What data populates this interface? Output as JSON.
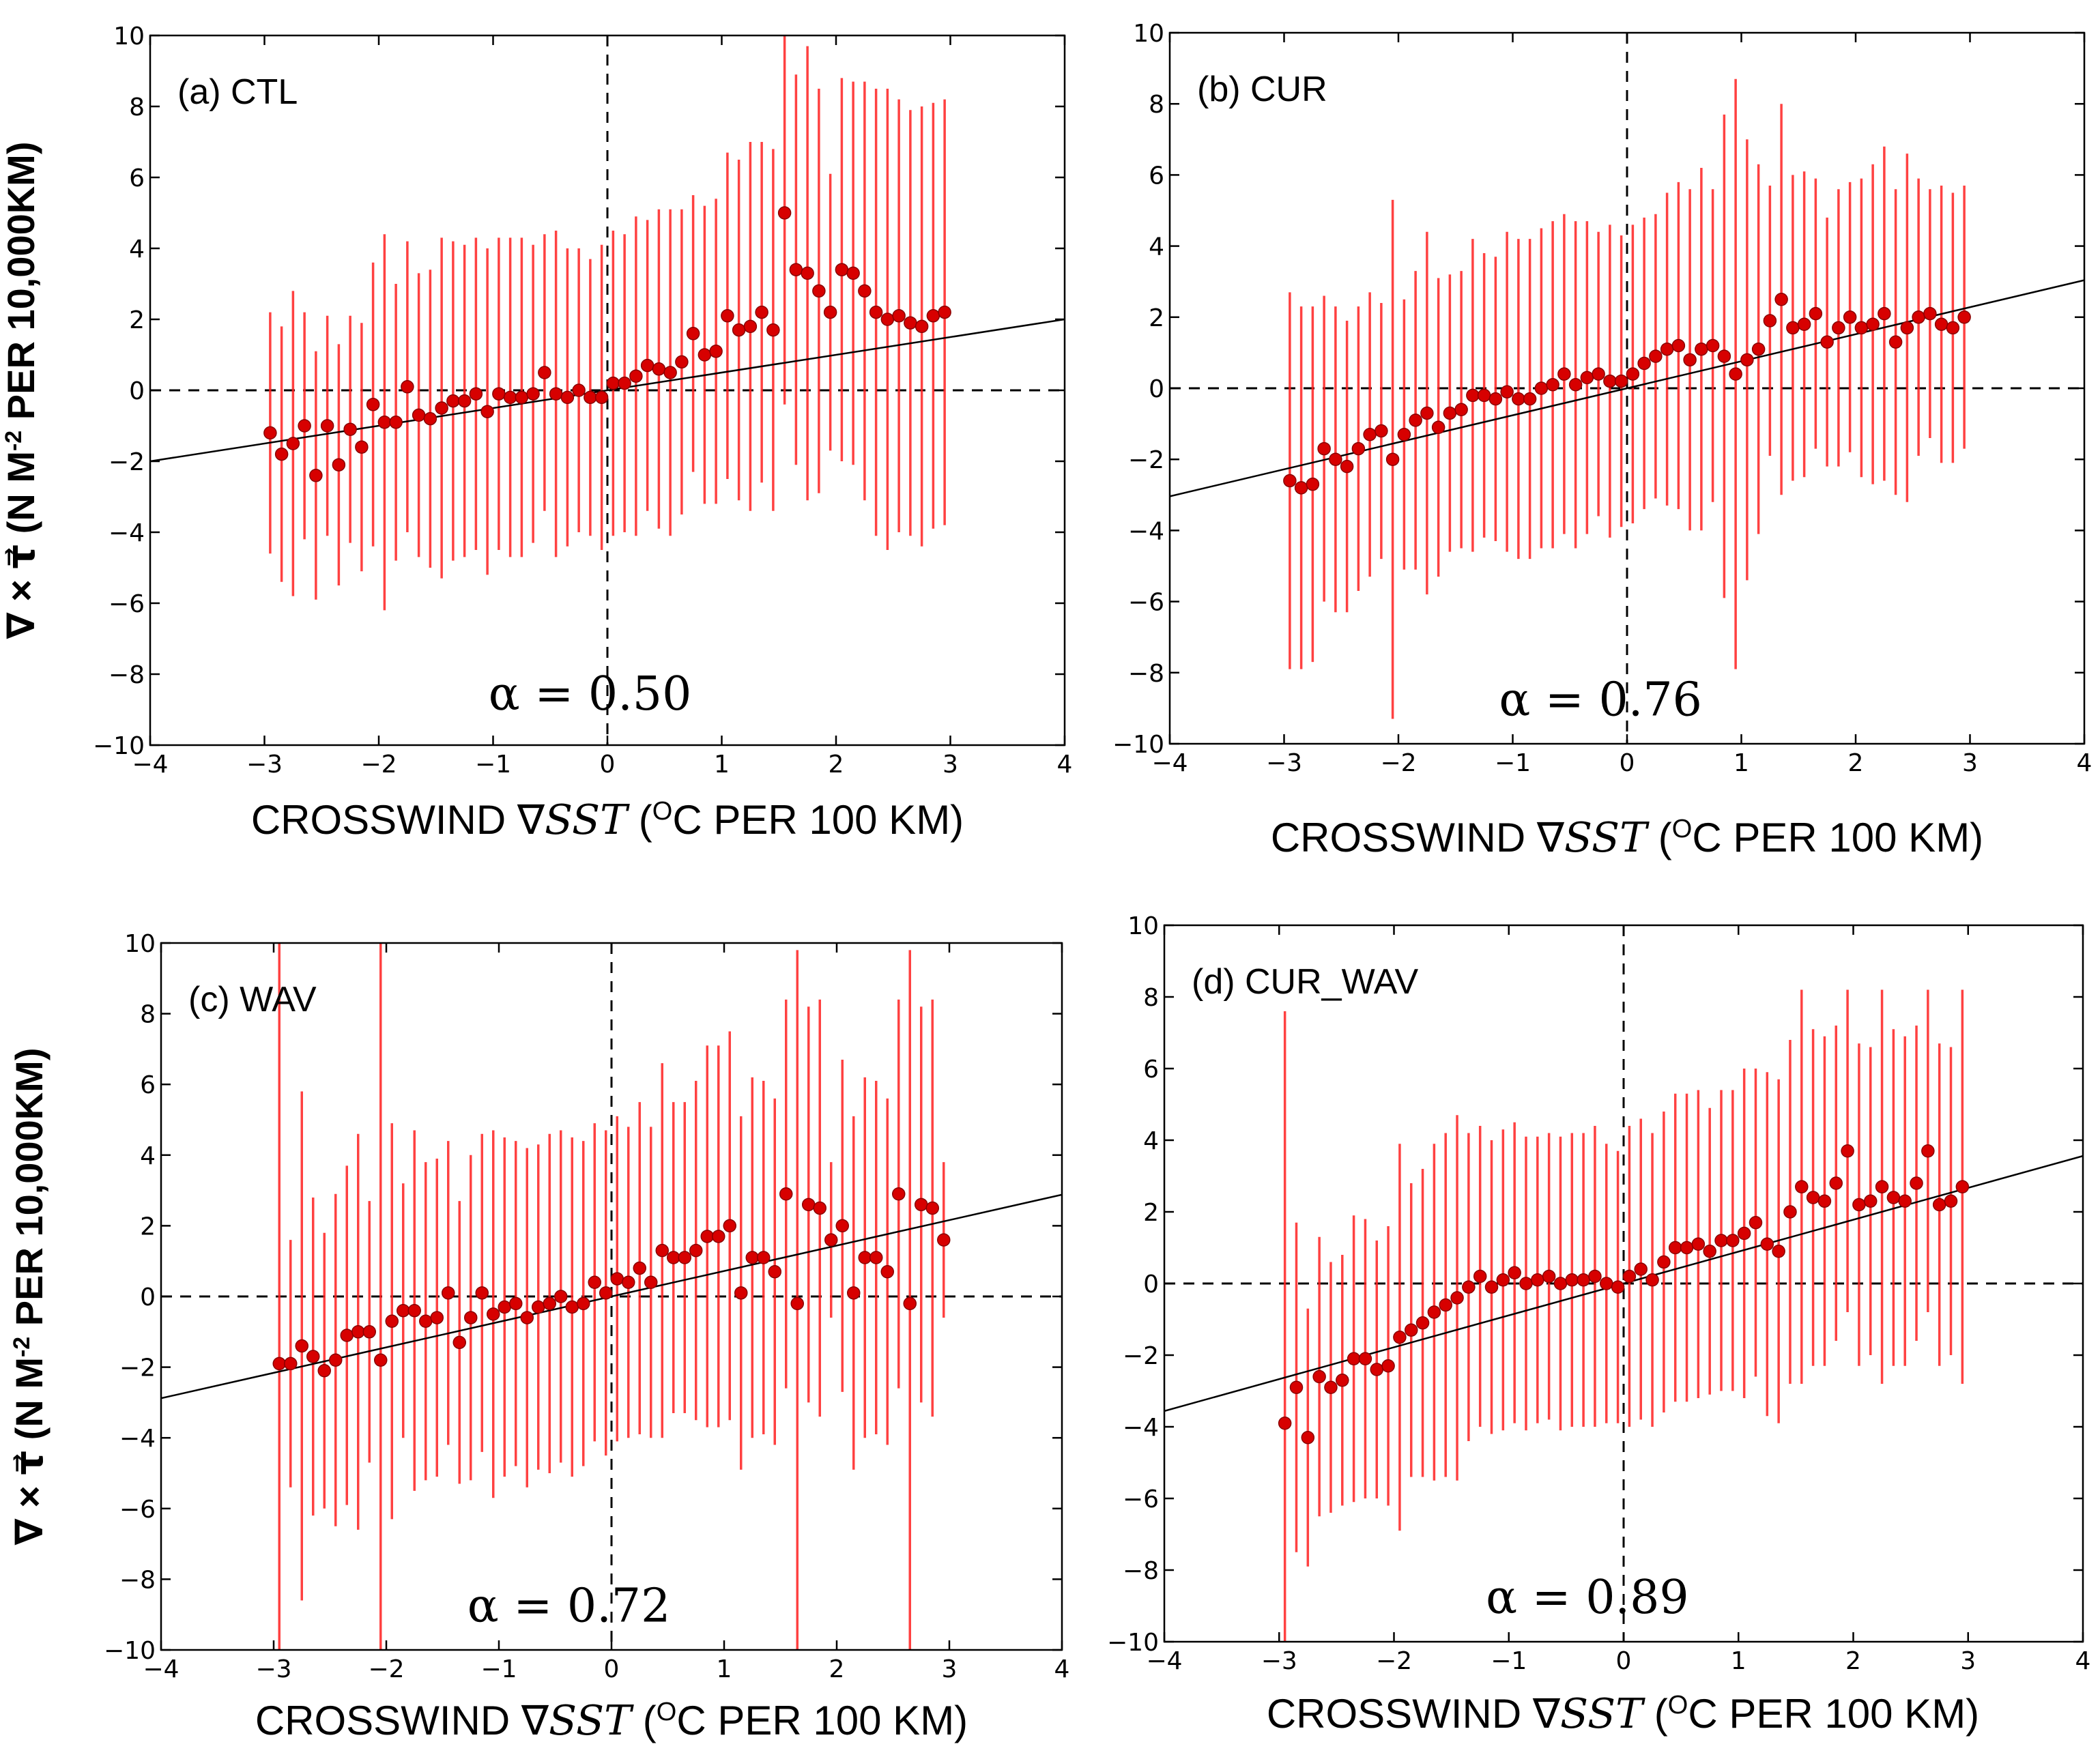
{
  "figure": {
    "xlabel": {
      "prefix": "CROSSWIND ∇",
      "sst": "SST",
      "unit_open": " (",
      "unit_sup": "O",
      "unit_rest": "C PER 100 KM)"
    },
    "ylabel": {
      "prefix": "∇ × τ⃗ (N M",
      "sup": "-2",
      "rest": " PER 10,000KM)"
    }
  },
  "chart_data": [
    {
      "type": "scatter",
      "title": "(a) CTL",
      "alpha_label": "α = 0.50",
      "xlim": [
        -4,
        4
      ],
      "ylim": [
        -10,
        10
      ],
      "xticks": [
        -4,
        -3,
        -2,
        -1,
        0,
        1,
        2,
        3,
        4
      ],
      "yticks": [
        -10,
        -8,
        -6,
        -4,
        -2,
        0,
        2,
        4,
        6,
        8,
        10
      ],
      "fit": {
        "slope": 0.5,
        "intercept": 0.0
      },
      "x": [
        -2.95,
        -2.85,
        -2.75,
        -2.65,
        -2.55,
        -2.45,
        -2.35,
        -2.25,
        -2.15,
        -2.05,
        -1.95,
        -1.85,
        -1.75,
        -1.65,
        -1.55,
        -1.45,
        -1.35,
        -1.25,
        -1.15,
        -1.05,
        -0.95,
        -0.85,
        -0.75,
        -0.65,
        -0.55,
        -0.45,
        -0.35,
        -0.25,
        -0.15,
        -0.05,
        0.05,
        0.15,
        0.25,
        0.35,
        0.45,
        0.55,
        0.65,
        0.75,
        0.85,
        0.95,
        1.05,
        1.15,
        1.25,
        1.35,
        1.45,
        1.55,
        1.65,
        1.75,
        1.85,
        1.95,
        2.05,
        2.15,
        2.25,
        2.35,
        2.45,
        2.55,
        2.65,
        2.75,
        2.85,
        2.95
      ],
      "y": [
        -1.2,
        -1.8,
        -1.5,
        -1.0,
        -2.4,
        -1.0,
        -2.1,
        -1.1,
        -1.6,
        -0.4,
        -0.9,
        -0.9,
        0.1,
        -0.7,
        -0.8,
        -0.5,
        -0.3,
        -0.3,
        -0.1,
        -0.6,
        -0.1,
        -0.2,
        -0.2,
        -0.1,
        0.5,
        -0.1,
        -0.2,
        0.0,
        -0.2,
        -0.2,
        0.2,
        0.2,
        0.4,
        0.7,
        0.6,
        0.5,
        0.8,
        1.6,
        1.0,
        1.1,
        2.1,
        1.7,
        1.8,
        2.2,
        1.7,
        5.0,
        3.4,
        3.3,
        2.8,
        2.2,
        3.4,
        3.3,
        2.8,
        2.2,
        2.0,
        2.1,
        1.9,
        1.8,
        2.1,
        2.2
      ],
      "yerr": [
        3.4,
        3.6,
        4.3,
        3.2,
        3.5,
        3.1,
        3.4,
        3.2,
        3.5,
        4.0,
        5.3,
        3.9,
        4.1,
        4.0,
        4.2,
        4.8,
        4.5,
        4.4,
        4.4,
        4.6,
        4.4,
        4.5,
        4.5,
        4.2,
        3.9,
        4.6,
        4.2,
        4.0,
        3.9,
        4.3,
        4.3,
        4.2,
        4.5,
        4.1,
        4.5,
        4.6,
        4.3,
        3.9,
        4.2,
        4.3,
        4.6,
        4.8,
        5.2,
        4.8,
        5.1,
        5.4,
        5.5,
        6.4,
        5.7,
        3.9,
        5.4,
        5.4,
        5.9,
        6.3,
        6.5,
        6.1,
        6.0,
        6.2,
        6.0,
        6.0
      ],
      "yerr_note": "symmetric half-width in y units"
    },
    {
      "type": "scatter",
      "title": "(b) CUR",
      "alpha_label": "α = 0.76",
      "xlim": [
        -4,
        4
      ],
      "ylim": [
        -10,
        10
      ],
      "xticks": [
        -4,
        -3,
        -2,
        -1,
        0,
        1,
        2,
        3,
        4
      ],
      "yticks": [
        -10,
        -8,
        -6,
        -4,
        -2,
        0,
        2,
        4,
        6,
        8,
        10
      ],
      "fit": {
        "slope": 0.76,
        "intercept": 0.0
      },
      "x": [
        -2.95,
        -2.85,
        -2.75,
        -2.65,
        -2.55,
        -2.45,
        -2.35,
        -2.25,
        -2.15,
        -2.05,
        -1.95,
        -1.85,
        -1.75,
        -1.65,
        -1.55,
        -1.45,
        -1.35,
        -1.25,
        -1.15,
        -1.05,
        -0.95,
        -0.85,
        -0.75,
        -0.65,
        -0.55,
        -0.45,
        -0.35,
        -0.25,
        -0.15,
        -0.05,
        0.05,
        0.15,
        0.25,
        0.35,
        0.45,
        0.55,
        0.65,
        0.75,
        0.85,
        0.95,
        1.05,
        1.15,
        1.25,
        1.35,
        1.45,
        1.55,
        1.65,
        1.75,
        1.85,
        1.95,
        2.05,
        2.15,
        2.25,
        2.35,
        2.45,
        2.55,
        2.65,
        2.75,
        2.85,
        2.95
      ],
      "y": [
        -2.6,
        -2.8,
        -2.7,
        -1.7,
        -2.0,
        -2.2,
        -1.7,
        -1.3,
        -1.2,
        -2.0,
        -1.3,
        -0.9,
        -0.7,
        -1.1,
        -0.7,
        -0.6,
        -0.2,
        -0.2,
        -0.3,
        -0.1,
        -0.3,
        -0.3,
        0.0,
        0.1,
        0.4,
        0.1,
        0.3,
        0.4,
        0.2,
        0.2,
        0.4,
        0.7,
        0.9,
        1.1,
        1.2,
        0.8,
        1.1,
        1.2,
        0.9,
        0.4,
        0.8,
        1.1,
        1.9,
        2.5,
        1.7,
        1.8,
        2.1,
        1.3,
        1.7,
        2.0,
        1.7,
        1.8,
        2.1,
        1.3,
        1.7,
        2.0,
        2.1,
        1.8,
        1.7,
        2.0
      ],
      "yerr": [
        5.3,
        5.1,
        5.0,
        4.3,
        4.3,
        4.1,
        4.0,
        4.0,
        3.6,
        7.3,
        3.8,
        4.2,
        5.1,
        4.2,
        3.9,
        3.9,
        4.4,
        4.0,
        4.0,
        4.5,
        4.5,
        4.5,
        4.5,
        4.6,
        4.5,
        4.6,
        4.4,
        4.0,
        4.4,
        4.1,
        4.2,
        4.1,
        4.0,
        4.4,
        4.6,
        4.8,
        5.1,
        4.4,
        6.8,
        8.3,
        6.2,
        5.2,
        3.8,
        5.5,
        4.3,
        4.3,
        3.8,
        3.5,
        3.9,
        3.8,
        4.2,
        4.5,
        4.7,
        4.3,
        4.9,
        3.9,
        3.5,
        3.9,
        3.8,
        3.7
      ],
      "yerr_note": "symmetric half-width in y units"
    },
    {
      "type": "scatter",
      "title": "(c) WAV",
      "alpha_label": "α = 0.72",
      "xlim": [
        -4,
        4
      ],
      "ylim": [
        -10,
        10
      ],
      "xticks": [
        -4,
        -3,
        -2,
        -1,
        0,
        1,
        2,
        3,
        4
      ],
      "yticks": [
        -10,
        -8,
        -6,
        -4,
        -2,
        0,
        2,
        4,
        6,
        8,
        10
      ],
      "fit": {
        "slope": 0.72,
        "intercept": 0.0
      },
      "x": [
        -2.95,
        -2.85,
        -2.75,
        -2.65,
        -2.55,
        -2.45,
        -2.35,
        -2.25,
        -2.15,
        -2.05,
        -1.95,
        -1.85,
        -1.75,
        -1.65,
        -1.55,
        -1.45,
        -1.35,
        -1.25,
        -1.15,
        -1.05,
        -0.95,
        -0.85,
        -0.75,
        -0.65,
        -0.55,
        -0.45,
        -0.35,
        -0.25,
        -0.15,
        -0.05,
        0.05,
        0.15,
        0.25,
        0.35,
        0.45,
        0.55,
        0.65,
        0.75,
        0.85,
        0.95,
        1.05,
        1.15,
        1.25,
        1.35,
        1.45,
        1.55,
        1.65,
        1.75,
        1.85,
        1.95,
        2.05,
        2.15,
        2.25,
        2.35,
        2.45,
        2.55,
        2.65,
        2.75,
        2.85,
        2.95
      ],
      "y": [
        -1.9,
        -1.9,
        -1.4,
        -1.7,
        -2.1,
        -1.8,
        -1.1,
        -1.0,
        -1.0,
        -1.8,
        -0.7,
        -0.4,
        -0.4,
        -0.7,
        -0.6,
        0.1,
        -1.3,
        -0.6,
        0.1,
        -0.5,
        -0.3,
        -0.2,
        -0.6,
        -0.3,
        -0.2,
        0.0,
        -0.3,
        -0.2,
        0.4,
        0.1,
        0.5,
        0.4,
        0.8,
        0.4,
        1.3,
        1.1,
        1.1,
        1.3,
        1.7,
        1.7,
        2.0,
        0.1,
        1.1,
        1.1,
        0.7,
        2.9,
        -0.2,
        2.6,
        2.5,
        1.6,
        2.0,
        0.1,
        1.1,
        1.1,
        0.7,
        2.9,
        -0.2,
        2.6,
        2.5,
        1.6
      ],
      "yerr": [
        12.0,
        3.5,
        7.2,
        4.5,
        3.9,
        4.7,
        4.8,
        5.6,
        3.7,
        12.0,
        5.6,
        3.6,
        5.1,
        4.5,
        4.5,
        4.3,
        4.0,
        4.6,
        4.5,
        5.2,
        4.8,
        4.6,
        4.8,
        4.6,
        4.8,
        4.7,
        4.8,
        4.6,
        4.5,
        4.6,
        4.6,
        4.4,
        4.7,
        4.4,
        5.3,
        4.4,
        4.4,
        4.8,
        5.4,
        5.4,
        5.5,
        5.0,
        5.1,
        5.0,
        4.9,
        5.5,
        10.0,
        5.6,
        5.9,
        2.2,
        4.7,
        5.0,
        5.1,
        5.0,
        4.9,
        5.5,
        10.0,
        5.6,
        5.9,
        2.2
      ],
      "yerr_note": "symmetric half-width in y units"
    },
    {
      "type": "scatter",
      "title": "(d) CUR_WAV",
      "alpha_label": "α = 0.89",
      "xlim": [
        -4,
        4
      ],
      "ylim": [
        -10,
        10
      ],
      "xticks": [
        -4,
        -3,
        -2,
        -1,
        0,
        1,
        2,
        3,
        4
      ],
      "yticks": [
        -10,
        -8,
        -6,
        -4,
        -2,
        0,
        2,
        4,
        6,
        8,
        10
      ],
      "fit": {
        "slope": 0.89,
        "intercept": 0.0
      },
      "x": [
        -2.95,
        -2.85,
        -2.75,
        -2.65,
        -2.55,
        -2.45,
        -2.35,
        -2.25,
        -2.15,
        -2.05,
        -1.95,
        -1.85,
        -1.75,
        -1.65,
        -1.55,
        -1.45,
        -1.35,
        -1.25,
        -1.15,
        -1.05,
        -0.95,
        -0.85,
        -0.75,
        -0.65,
        -0.55,
        -0.45,
        -0.35,
        -0.25,
        -0.15,
        -0.05,
        0.05,
        0.15,
        0.25,
        0.35,
        0.45,
        0.55,
        0.65,
        0.75,
        0.85,
        0.95,
        1.05,
        1.15,
        1.25,
        1.35,
        1.45,
        1.55,
        1.65,
        1.75,
        1.85,
        1.95,
        2.05,
        2.15,
        2.25,
        2.35,
        2.45,
        2.55,
        2.65,
        2.75,
        2.85,
        2.95
      ],
      "y": [
        -3.9,
        -2.9,
        -4.3,
        -2.6,
        -2.9,
        -2.7,
        -2.1,
        -2.1,
        -2.4,
        -2.3,
        -1.5,
        -1.3,
        -1.1,
        -0.8,
        -0.6,
        -0.4,
        -0.1,
        0.2,
        -0.1,
        0.1,
        0.3,
        0.0,
        0.1,
        0.2,
        0.0,
        0.1,
        0.1,
        0.2,
        0.0,
        -0.1,
        0.2,
        0.4,
        0.1,
        0.6,
        1.0,
        1.0,
        1.1,
        0.9,
        1.2,
        1.2,
        1.4,
        1.7,
        1.1,
        0.9,
        2.0,
        2.7,
        2.4,
        2.3,
        2.8,
        3.7,
        2.2,
        2.3,
        2.7,
        2.4,
        2.3,
        2.8,
        3.7,
        2.2,
        2.3,
        2.7
      ],
      "yerr": [
        11.5,
        4.6,
        3.6,
        3.9,
        3.5,
        3.5,
        4.0,
        3.9,
        3.6,
        3.9,
        5.4,
        4.1,
        4.3,
        4.7,
        4.8,
        5.1,
        4.3,
        4.2,
        4.1,
        4.2,
        4.2,
        4.1,
        4.0,
        4.0,
        4.1,
        4.1,
        4.1,
        4.2,
        3.9,
        3.8,
        4.2,
        4.2,
        4.1,
        4.2,
        4.3,
        4.3,
        4.3,
        4.0,
        4.2,
        4.2,
        4.6,
        4.3,
        4.8,
        4.8,
        4.8,
        5.5,
        4.7,
        4.6,
        4.4,
        4.5,
        4.5,
        4.3,
        5.5,
        4.7,
        4.6,
        4.4,
        4.5,
        4.5,
        4.3,
        5.5
      ],
      "yerr_note": "symmetric half-width in y units"
    }
  ]
}
